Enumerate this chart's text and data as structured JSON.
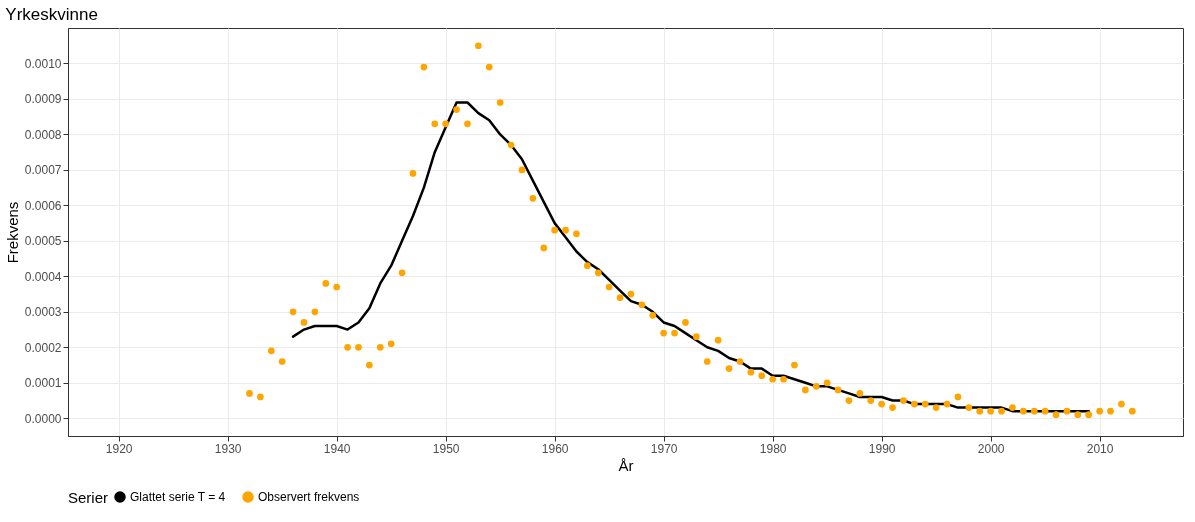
{
  "chart_data": {
    "type": "line",
    "title": "Yrkeskvinne",
    "xlabel": "År",
    "ylabel": "Frekvens",
    "legend_title": "Serier",
    "xlim": [
      1915.35,
      2017.65
    ],
    "ylim": [
      -5e-05,
      0.0011
    ],
    "xticks": [
      1920,
      1930,
      1940,
      1950,
      1960,
      1970,
      1980,
      1990,
      2000,
      2010
    ],
    "yticks": [
      {
        "value": 0,
        "label": "0.0000"
      },
      {
        "value": 0.0001,
        "label": "0.0001"
      },
      {
        "value": 0.0002,
        "label": "0.0002"
      },
      {
        "value": 0.0003,
        "label": "0.0003"
      },
      {
        "value": 0.0004,
        "label": "0.0004"
      },
      {
        "value": 0.0005,
        "label": "0.0005"
      },
      {
        "value": 0.0006,
        "label": "0.0006"
      },
      {
        "value": 0.0007,
        "label": "0.0007"
      },
      {
        "value": 0.0008,
        "label": "0.0008"
      },
      {
        "value": 0.0009,
        "label": "0.0009"
      },
      {
        "value": 0.001,
        "label": "0.0010"
      }
    ],
    "grid": true,
    "legend": "bottom",
    "series": [
      {
        "name": "Glattet serie T  = 4",
        "type": "line",
        "color": "#000000",
        "line_style": "solid",
        "x": [
          1936,
          1937,
          1938,
          1939,
          1940,
          1941,
          1942,
          1943,
          1944,
          1945,
          1946,
          1947,
          1948,
          1949,
          1950,
          1951,
          1952,
          1953,
          1954,
          1955,
          1956,
          1957,
          1958,
          1959,
          1960,
          1961,
          1962,
          1963,
          1964,
          1965,
          1966,
          1967,
          1968,
          1969,
          1970,
          1971,
          1972,
          1973,
          1974,
          1975,
          1976,
          1977,
          1978,
          1979,
          1980,
          1981,
          1982,
          1983,
          1984,
          1985,
          1986,
          1987,
          1988,
          1989,
          1990,
          1991,
          1992,
          1993,
          1994,
          1995,
          1996,
          1997,
          1998,
          1999,
          2000,
          2001,
          2002,
          2003,
          2004,
          2005,
          2006,
          2007,
          2008,
          2009
        ],
        "values": [
          0.00023,
          0.00025,
          0.00026,
          0.00026,
          0.00026,
          0.00025,
          0.00027,
          0.00031,
          0.00038,
          0.00043,
          0.0005,
          0.00057,
          0.00065,
          0.00075,
          0.00082,
          0.00089,
          0.00089,
          0.00086,
          0.00084,
          0.0008,
          0.00077,
          0.00073,
          0.00067,
          0.00061,
          0.00055,
          0.00051,
          0.00047,
          0.00044,
          0.00042,
          0.00039,
          0.00036,
          0.00033,
          0.00032,
          0.0003,
          0.00027,
          0.00026,
          0.00024,
          0.00022,
          0.0002,
          0.00019,
          0.00017,
          0.00016,
          0.00014,
          0.00014,
          0.00012,
          0.00012,
          0.00011,
          0.0001,
          9e-05,
          9e-05,
          8e-05,
          7e-05,
          6e-05,
          6e-05,
          6e-05,
          5e-05,
          5e-05,
          4e-05,
          4e-05,
          4e-05,
          4e-05,
          3e-05,
          3e-05,
          3e-05,
          3e-05,
          3e-05,
          2e-05,
          2e-05,
          2e-05,
          2e-05,
          2e-05,
          2e-05,
          2e-05,
          2e-05
        ]
      },
      {
        "name": "Observert frekvens",
        "type": "scatter",
        "color": "#ffa500",
        "marker": "circle",
        "x": [
          1932,
          1933,
          1934,
          1935,
          1936,
          1937,
          1938,
          1939,
          1940,
          1941,
          1942,
          1943,
          1944,
          1945,
          1946,
          1947,
          1948,
          1949,
          1950,
          1951,
          1952,
          1953,
          1954,
          1955,
          1956,
          1957,
          1958,
          1959,
          1960,
          1961,
          1962,
          1963,
          1964,
          1965,
          1966,
          1967,
          1968,
          1969,
          1970,
          1971,
          1972,
          1973,
          1974,
          1975,
          1976,
          1977,
          1978,
          1979,
          1980,
          1981,
          1982,
          1983,
          1984,
          1985,
          1986,
          1987,
          1988,
          1989,
          1990,
          1991,
          1992,
          1993,
          1994,
          1995,
          1996,
          1997,
          1998,
          1999,
          2000,
          2001,
          2002,
          2003,
          2004,
          2005,
          2006,
          2007,
          2008,
          2009,
          2010,
          2011,
          2012,
          2013
        ],
        "values": [
          7e-05,
          6e-05,
          0.00019,
          0.00016,
          0.0003,
          0.00027,
          0.0003,
          0.00038,
          0.00037,
          0.0002,
          0.0002,
          0.00015,
          0.0002,
          0.00021,
          0.00041,
          0.00069,
          0.00099,
          0.00083,
          0.00083,
          0.00087,
          0.00083,
          0.00105,
          0.00099,
          0.00089,
          0.00077,
          0.0007,
          0.00062,
          0.00048,
          0.00053,
          0.00053,
          0.00052,
          0.00043,
          0.00041,
          0.00037,
          0.00034,
          0.00035,
          0.00032,
          0.00029,
          0.00024,
          0.00024,
          0.00027,
          0.00023,
          0.00016,
          0.00022,
          0.00014,
          0.00016,
          0.00013,
          0.00012,
          0.00011,
          0.00011,
          0.00015,
          8e-05,
          9e-05,
          0.0001,
          8e-05,
          5e-05,
          7e-05,
          5e-05,
          4e-05,
          3e-05,
          5e-05,
          4e-05,
          4e-05,
          3e-05,
          4e-05,
          6e-05,
          3e-05,
          2e-05,
          2e-05,
          2e-05,
          3e-05,
          2e-05,
          2e-05,
          2e-05,
          1e-05,
          2e-05,
          1e-05,
          1e-05,
          2e-05,
          2e-05,
          4e-05,
          2e-05
        ]
      }
    ]
  }
}
